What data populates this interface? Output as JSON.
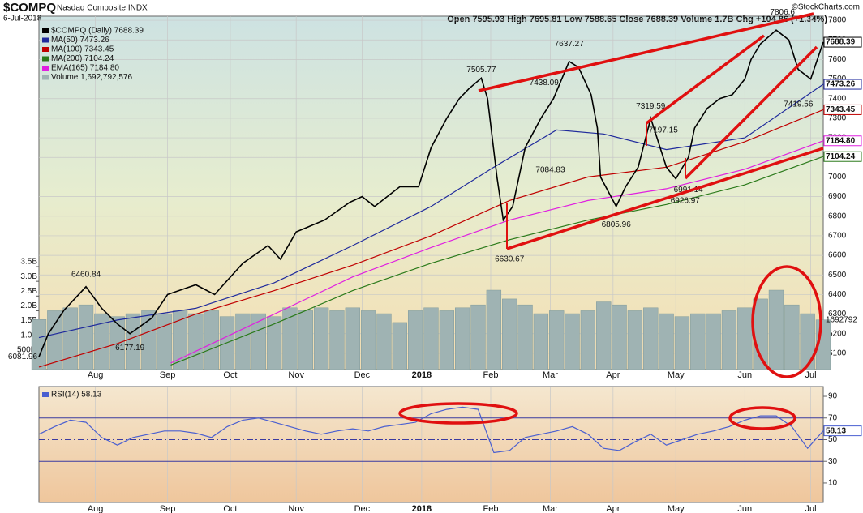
{
  "header": {
    "symbol": "$COMPQ",
    "name": "Nasdaq Composite INDX",
    "date": "6-Jul-2018",
    "ohlc": "Open 7595.93 High 7695.81 Low 7588.65 Close 7688.39 Volume 1.7B Chg +104.86 (+1.34%)",
    "credit": "©StockCharts.com"
  },
  "chart_data": [
    {
      "type": "line",
      "xlim": [
        0,
        250
      ],
      "xticks": [
        {
          "value": 18,
          "label": "Aug"
        },
        {
          "value": 41,
          "label": "Sep"
        },
        {
          "value": 61,
          "label": "Oct"
        },
        {
          "value": 82,
          "label": "Nov"
        },
        {
          "value": 103,
          "label": "Dec"
        },
        {
          "value": 122,
          "label": "2018"
        },
        {
          "value": 144,
          "label": "Feb"
        },
        {
          "value": 163,
          "label": "Mar"
        },
        {
          "value": 183,
          "label": "Apr"
        },
        {
          "value": 203,
          "label": "May"
        },
        {
          "value": 225,
          "label": "Jun"
        },
        {
          "value": 246,
          "label": "Jul"
        }
      ],
      "ylim": [
        6017,
        7821
      ],
      "yticks": [
        6100,
        6200,
        6300,
        6400,
        6500,
        6600,
        6700,
        6800,
        6900,
        7000,
        7100,
        7200,
        7300,
        7400,
        7500,
        7600,
        7700,
        7800
      ],
      "y2lim": [
        0,
        3.5
      ],
      "y2ticks": [
        {
          "value": 3.5,
          "label": "3.5B"
        },
        {
          "value": 3,
          "label": "3.0B"
        },
        {
          "value": 2.5,
          "label": "2.5B"
        },
        {
          "value": 2,
          "label": "2.0B"
        },
        {
          "value": 1.5,
          "label": "1.5B"
        },
        {
          "value": 1,
          "label": "1.0B"
        },
        {
          "value": 0.5,
          "label": "500M"
        }
      ],
      "grid": true,
      "series": [
        {
          "name": "$COMPQ (Daily) 7688.39",
          "color": "#000000",
          "end_label": "7688.39",
          "x": [
            0,
            3,
            8,
            15,
            20,
            25,
            29,
            36,
            41,
            50,
            56,
            65,
            73,
            77,
            82,
            91,
            99,
            103,
            107,
            115,
            121,
            125,
            130,
            134,
            137,
            141,
            143,
            146,
            148,
            151,
            155,
            160,
            164,
            169,
            172,
            176,
            178,
            179,
            184,
            187,
            191,
            195,
            198,
            200,
            203,
            207,
            209,
            213,
            217,
            221,
            225,
            227,
            230,
            235,
            239,
            242,
            246,
            250
          ],
          "values": [
            6082,
            6200,
            6320,
            6440,
            6330,
            6250,
            6200,
            6280,
            6400,
            6450,
            6400,
            6560,
            6650,
            6580,
            6720,
            6780,
            6870,
            6900,
            6850,
            6950,
            6950,
            7150,
            7300,
            7400,
            7450,
            7505,
            7400,
            7000,
            6780,
            6850,
            7150,
            7300,
            7400,
            7590,
            7560,
            7420,
            7250,
            7000,
            6850,
            6950,
            7050,
            7300,
            7150,
            7050,
            6991,
            7100,
            7250,
            7350,
            7400,
            7420,
            7500,
            7600,
            7680,
            7750,
            7700,
            7550,
            7500,
            7688.39
          ]
        },
        {
          "name": "MA(50) 7473.26",
          "color": "#1f2a9c",
          "end_label": "7473.26",
          "x": [
            0,
            25,
            50,
            75,
            100,
            125,
            145,
            165,
            180,
            200,
            225,
            250
          ],
          "values": [
            6180,
            6270,
            6330,
            6460,
            6650,
            6850,
            7050,
            7240,
            7220,
            7140,
            7200,
            7473.26
          ]
        },
        {
          "name": "MA(100) 7343.45",
          "color": "#c00000",
          "end_label": "7343.45",
          "x": [
            0,
            25,
            50,
            75,
            100,
            125,
            150,
            175,
            200,
            225,
            250
          ],
          "values": [
            6030,
            6150,
            6300,
            6420,
            6550,
            6700,
            6880,
            7000,
            7050,
            7180,
            7343.45
          ]
        },
        {
          "name": "MA(200) 7104.24",
          "color": "#2a7a1a",
          "end_label": "7104.24",
          "x": [
            42,
            75,
            100,
            125,
            150,
            175,
            200,
            225,
            250
          ],
          "values": [
            6040,
            6250,
            6420,
            6560,
            6680,
            6780,
            6860,
            6960,
            7104.24
          ]
        },
        {
          "name": "EMA(165) 7184.80",
          "color": "#e020e0",
          "end_label": "7184.80",
          "x": [
            42,
            75,
            100,
            125,
            150,
            175,
            200,
            225,
            250
          ],
          "values": [
            6050,
            6300,
            6490,
            6640,
            6780,
            6880,
            6940,
            7040,
            7184.8
          ]
        },
        {
          "name": "Volume 1,692,792,576",
          "color": "#9fb3b3",
          "type": "bar",
          "axis": "y2",
          "end_label": "1692792",
          "x": [
            0,
            5,
            10,
            15,
            20,
            25,
            30,
            35,
            40,
            45,
            50,
            55,
            60,
            65,
            70,
            75,
            80,
            85,
            90,
            95,
            100,
            105,
            110,
            115,
            120,
            125,
            130,
            135,
            140,
            145,
            150,
            155,
            160,
            165,
            170,
            175,
            180,
            185,
            190,
            195,
            200,
            205,
            210,
            215,
            220,
            225,
            230,
            235,
            240,
            245,
            250
          ],
          "values": [
            1.7,
            2.0,
            2.1,
            2.2,
            1.9,
            1.8,
            1.9,
            2.0,
            1.9,
            2.0,
            1.9,
            2.0,
            1.8,
            1.9,
            1.9,
            1.8,
            2.1,
            2.0,
            2.1,
            2.0,
            2.1,
            2.0,
            1.9,
            1.6,
            2.0,
            2.1,
            2.0,
            2.1,
            2.2,
            2.7,
            2.4,
            2.2,
            1.9,
            2.0,
            1.9,
            2.0,
            2.3,
            2.2,
            2.0,
            2.1,
            1.9,
            1.8,
            1.9,
            1.9,
            2.0,
            2.1,
            2.4,
            2.7,
            2.2,
            1.9,
            1.69
          ]
        }
      ],
      "annotations": [
        {
          "x": 0,
          "y": 6081.96
        },
        {
          "x": 15,
          "y": 6460.84
        },
        {
          "x": 29,
          "y": 6177.19
        },
        {
          "x": 141,
          "y": 7505.77
        },
        {
          "x": 150,
          "y": 6630.67
        },
        {
          "x": 161,
          "y": 7438.09
        },
        {
          "x": 163,
          "y": 7084.83
        },
        {
          "x": 169,
          "y": 7637.27
        },
        {
          "x": 184,
          "y": 6805.96
        },
        {
          "x": 195,
          "y": 7319.59
        },
        {
          "x": 199,
          "y": 7197.15
        },
        {
          "x": 206,
          "y": 6926.97
        },
        {
          "x": 207,
          "y": 6991.14
        },
        {
          "x": 237,
          "y": 7806.6
        },
        {
          "x": 240,
          "y": 7419.56
        }
      ]
    },
    {
      "type": "line",
      "xlim": [
        0,
        250
      ],
      "xticks": [
        {
          "value": 18,
          "label": "Aug"
        },
        {
          "value": 41,
          "label": "Sep"
        },
        {
          "value": 61,
          "label": "Oct"
        },
        {
          "value": 82,
          "label": "Nov"
        },
        {
          "value": 103,
          "label": "Dec"
        },
        {
          "value": 122,
          "label": "2018"
        },
        {
          "value": 144,
          "label": "Feb"
        },
        {
          "value": 163,
          "label": "Mar"
        },
        {
          "value": 183,
          "label": "Apr"
        },
        {
          "value": 203,
          "label": "May"
        },
        {
          "value": 225,
          "label": "Jun"
        },
        {
          "value": 246,
          "label": "Jul"
        }
      ],
      "ylim": [
        -8,
        99
      ],
      "yticks": [
        10,
        30,
        50,
        70,
        90
      ],
      "bands": [
        30,
        70
      ],
      "midline": 50,
      "series": [
        {
          "name": "RSI(14) 58.13",
          "color": "#4a5fd0",
          "end_label": "58.13",
          "x": [
            0,
            5,
            10,
            15,
            20,
            25,
            30,
            35,
            40,
            45,
            50,
            55,
            60,
            65,
            70,
            75,
            80,
            85,
            90,
            95,
            100,
            105,
            110,
            115,
            120,
            125,
            130,
            135,
            140,
            145,
            150,
            155,
            160,
            165,
            170,
            175,
            180,
            185,
            190,
            195,
            200,
            205,
            210,
            215,
            220,
            225,
            230,
            235,
            240,
            245,
            250
          ],
          "values": [
            55,
            62,
            68,
            66,
            52,
            45,
            52,
            55,
            58,
            58,
            56,
            52,
            62,
            68,
            70,
            66,
            62,
            58,
            55,
            58,
            60,
            58,
            62,
            64,
            66,
            74,
            78,
            80,
            78,
            38,
            40,
            52,
            55,
            58,
            62,
            55,
            42,
            40,
            48,
            55,
            45,
            50,
            55,
            58,
            62,
            68,
            72,
            72,
            62,
            42,
            58.13
          ]
        }
      ]
    }
  ]
}
